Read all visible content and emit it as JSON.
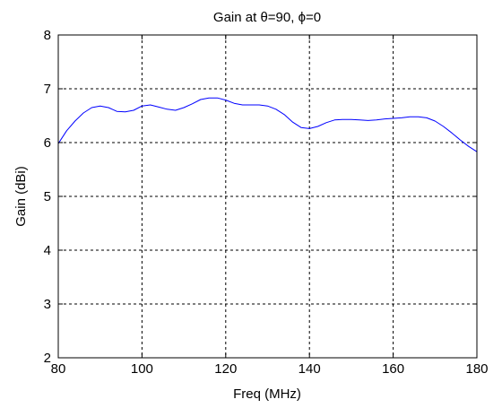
{
  "chart_data": {
    "type": "line",
    "title": "Gain at θ=90, ϕ=0",
    "xlabel": "Freq (MHz)",
    "ylabel": "Gain (dBi)",
    "xlim": [
      80,
      180
    ],
    "ylim": [
      2,
      8
    ],
    "xticks": [
      80,
      100,
      120,
      140,
      160,
      180
    ],
    "yticks": [
      2,
      3,
      4,
      5,
      6,
      7,
      8
    ],
    "grid": true,
    "line_color": "#0000ff",
    "series": [
      {
        "x": [
          80,
          82,
          84,
          86,
          88,
          90,
          92,
          94,
          96,
          98,
          100,
          102,
          104,
          106,
          108,
          110,
          112,
          114,
          116,
          118,
          120,
          122,
          124,
          126,
          128,
          130,
          132,
          134,
          136,
          138,
          140,
          142,
          144,
          146,
          148,
          150,
          152,
          154,
          156,
          158,
          160,
          162,
          164,
          166,
          168,
          170,
          172,
          174,
          176,
          178,
          180
        ],
        "y": [
          5.98,
          6.22,
          6.4,
          6.55,
          6.65,
          6.68,
          6.65,
          6.58,
          6.57,
          6.6,
          6.68,
          6.7,
          6.66,
          6.62,
          6.6,
          6.65,
          6.72,
          6.8,
          6.83,
          6.83,
          6.79,
          6.73,
          6.7,
          6.7,
          6.7,
          6.68,
          6.62,
          6.52,
          6.38,
          6.28,
          6.26,
          6.3,
          6.37,
          6.42,
          6.43,
          6.43,
          6.42,
          6.41,
          6.42,
          6.44,
          6.45,
          6.46,
          6.48,
          6.48,
          6.46,
          6.4,
          6.3,
          6.18,
          6.05,
          5.93,
          5.83
        ]
      }
    ]
  }
}
